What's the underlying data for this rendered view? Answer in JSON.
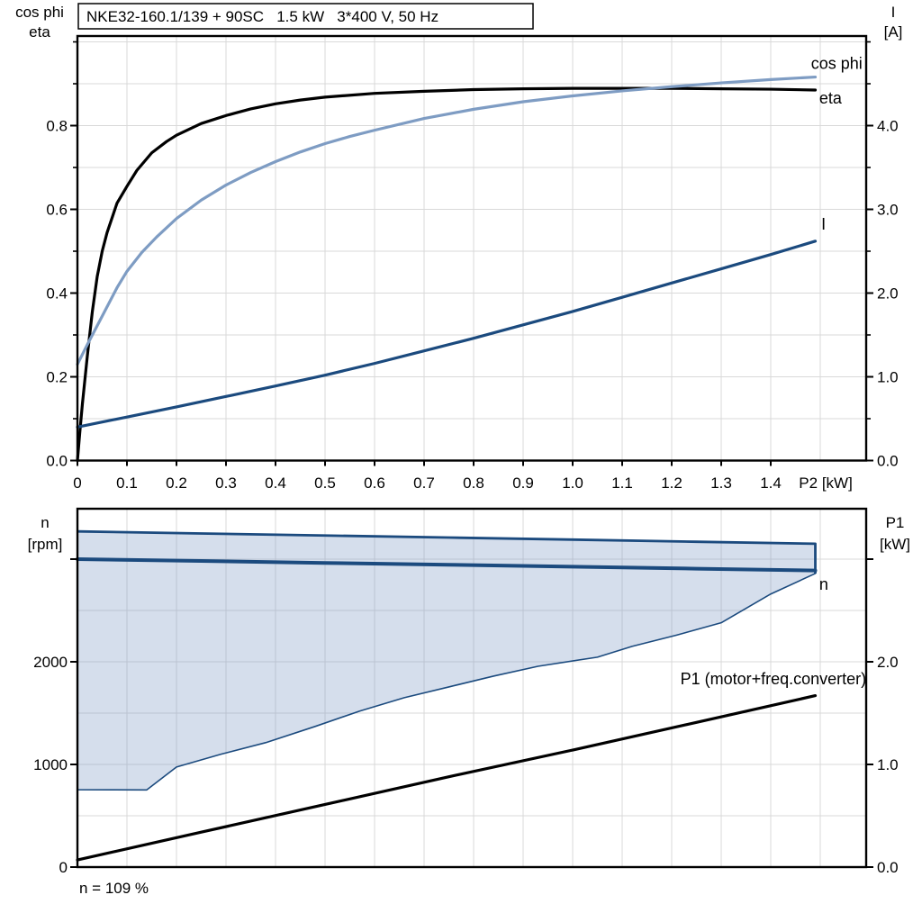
{
  "colors": {
    "black": "#000000",
    "dark_blue": "#1B4A7E",
    "light_blue": "#7E9CC3",
    "grid": "#D9D9D9",
    "area_fill": "rgba(126,156,196,0.33)",
    "frame": "#000000",
    "title_box_bg": "#FFFFFF"
  },
  "chart_data": [
    {
      "type": "line",
      "title": "NKE32-160.1/139 + 90SC   1.5 kW   3*400 V, 50 Hz",
      "x_axis": {
        "range": [
          0,
          1.5927
        ],
        "grid_step": 0.1,
        "ticks": [
          {
            "v": 0,
            "label": "0"
          },
          {
            "v": 0.1,
            "label": "0.1"
          },
          {
            "v": 0.2,
            "label": "0.2"
          },
          {
            "v": 0.3,
            "label": "0.3"
          },
          {
            "v": 0.4,
            "label": "0.4"
          },
          {
            "v": 0.5,
            "label": "0.5"
          },
          {
            "v": 0.6,
            "label": "0.6"
          },
          {
            "v": 0.7,
            "label": "0.7"
          },
          {
            "v": 0.8,
            "label": "0.8"
          },
          {
            "v": 0.9,
            "label": "0.9"
          },
          {
            "v": 1.0,
            "label": "1.0"
          },
          {
            "v": 1.1,
            "label": "1.1"
          },
          {
            "v": 1.2,
            "label": "1.2"
          },
          {
            "v": 1.3,
            "label": "1.3"
          },
          {
            "v": 1.4,
            "label": "1.4"
          }
        ],
        "unit_label": "P2 [kW]",
        "unit_label_x": 1.511
      },
      "left_axis": {
        "header": [
          "cos phi",
          "eta"
        ],
        "range": [
          0,
          1.014
        ],
        "grid_step": 0.1,
        "ticks": [
          {
            "v": 0.0,
            "label": "0.0"
          },
          {
            "v": 0.2,
            "label": "0.2"
          },
          {
            "v": 0.4,
            "label": "0.4"
          },
          {
            "v": 0.6,
            "label": "0.6"
          },
          {
            "v": 0.8,
            "label": "0.8"
          }
        ],
        "minor": [
          0.1,
          0.3,
          0.5,
          0.7,
          0.9,
          1.0
        ]
      },
      "right_axis": {
        "header": [
          "I",
          "[A]"
        ],
        "range": [
          0,
          5.0699
        ],
        "ticks": [
          {
            "v": 0.0,
            "label": "0.0"
          },
          {
            "v": 1.0,
            "label": "1.0"
          },
          {
            "v": 2.0,
            "label": "2.0"
          },
          {
            "v": 3.0,
            "label": "3.0"
          },
          {
            "v": 4.0,
            "label": "4.0"
          }
        ],
        "minor": [
          0.5,
          1.5,
          2.5,
          3.5,
          4.5,
          5.0
        ]
      },
      "series": [
        {
          "name": "eta",
          "axis": "left",
          "color": "#000000",
          "width": 3.2,
          "points": [
            [
              0,
              0
            ],
            [
              0.005,
              0.07
            ],
            [
              0.01,
              0.135
            ],
            [
              0.02,
              0.25
            ],
            [
              0.03,
              0.355
            ],
            [
              0.04,
              0.44
            ],
            [
              0.05,
              0.5
            ],
            [
              0.06,
              0.545
            ],
            [
              0.08,
              0.615
            ],
            [
              0.1,
              0.655
            ],
            [
              0.12,
              0.693
            ],
            [
              0.15,
              0.735
            ],
            [
              0.18,
              0.762
            ],
            [
              0.2,
              0.777
            ],
            [
              0.25,
              0.805
            ],
            [
              0.3,
              0.824
            ],
            [
              0.35,
              0.84
            ],
            [
              0.4,
              0.852
            ],
            [
              0.45,
              0.861
            ],
            [
              0.5,
              0.868
            ],
            [
              0.6,
              0.877
            ],
            [
              0.7,
              0.882
            ],
            [
              0.8,
              0.886
            ],
            [
              0.9,
              0.888
            ],
            [
              1.0,
              0.889
            ],
            [
              1.1,
              0.889
            ],
            [
              1.2,
              0.889
            ],
            [
              1.3,
              0.888
            ],
            [
              1.4,
              0.887
            ],
            [
              1.49,
              0.885
            ]
          ],
          "label": {
            "text": "eta",
            "x": 1.498,
            "y": 0.853,
            "anchor": "start",
            "color": "#000000"
          }
        },
        {
          "name": "cos phi",
          "axis": "left",
          "color": "#7E9CC3",
          "width": 3.2,
          "points": [
            [
              0,
              0.23
            ],
            [
              0.02,
              0.277
            ],
            [
              0.05,
              0.345
            ],
            [
              0.08,
              0.413
            ],
            [
              0.1,
              0.452
            ],
            [
              0.13,
              0.497
            ],
            [
              0.16,
              0.534
            ],
            [
              0.2,
              0.578
            ],
            [
              0.25,
              0.622
            ],
            [
              0.3,
              0.658
            ],
            [
              0.35,
              0.688
            ],
            [
              0.4,
              0.714
            ],
            [
              0.45,
              0.737
            ],
            [
              0.5,
              0.757
            ],
            [
              0.55,
              0.774
            ],
            [
              0.6,
              0.789
            ],
            [
              0.7,
              0.817
            ],
            [
              0.8,
              0.839
            ],
            [
              0.9,
              0.857
            ],
            [
              1.0,
              0.871
            ],
            [
              1.1,
              0.883
            ],
            [
              1.2,
              0.893
            ],
            [
              1.3,
              0.902
            ],
            [
              1.4,
              0.91
            ],
            [
              1.49,
              0.916
            ]
          ],
          "label": {
            "text": "cos phi",
            "x": 1.585,
            "y": 0.936,
            "anchor": "end",
            "color": "#7E9CC3"
          }
        },
        {
          "name": "I",
          "axis": "right",
          "color": "#1B4A7E",
          "width": 3.2,
          "points": [
            [
              0,
              0.4
            ],
            [
              0.1,
              0.52
            ],
            [
              0.2,
              0.64
            ],
            [
              0.3,
              0.765
            ],
            [
              0.4,
              0.89
            ],
            [
              0.5,
              1.02
            ],
            [
              0.6,
              1.16
            ],
            [
              0.7,
              1.31
            ],
            [
              0.8,
              1.46
            ],
            [
              0.9,
              1.62
            ],
            [
              1.0,
              1.78
            ],
            [
              1.1,
              1.95
            ],
            [
              1.2,
              2.12
            ],
            [
              1.3,
              2.29
            ],
            [
              1.4,
              2.46
            ],
            [
              1.49,
              2.62
            ]
          ],
          "label": {
            "text": "I",
            "x": 1.502,
            "y": 2.758,
            "anchor": "start",
            "color": "#1B4A7E"
          }
        }
      ]
    },
    {
      "type": "line",
      "title": "",
      "x_axis": {
        "range": [
          0,
          1.5927
        ],
        "grid_step": 0.1,
        "ticks": [],
        "unit_label": "",
        "unit_label_x": 0
      },
      "left_axis": {
        "header": [
          "n",
          "[rpm]"
        ],
        "range": [
          0,
          3491
        ],
        "grid_step": 500,
        "ticks": [
          {
            "v": 0,
            "label": "0"
          },
          {
            "v": 1000,
            "label": "1000"
          },
          {
            "v": 2000,
            "label": "2000"
          },
          {
            "v": 3000,
            "label": ""
          }
        ],
        "minor": []
      },
      "right_axis": {
        "header": [
          "P1",
          "[kW]"
        ],
        "range": [
          0,
          3.4912
        ],
        "ticks": [
          {
            "v": 0.0,
            "label": "0.0"
          },
          {
            "v": 1.0,
            "label": "1.0"
          },
          {
            "v": 2.0,
            "label": "2.0"
          },
          {
            "v": 3.0,
            "label": ""
          }
        ],
        "minor": []
      },
      "area": {
        "name": "speed-range",
        "axis": "left",
        "fill": "rgba(126,156,196,0.33)",
        "border_color": "#1B4A7E",
        "upper": [
          [
            0,
            3270
          ],
          [
            0.25,
            3250
          ],
          [
            0.5,
            3230
          ],
          [
            0.75,
            3210
          ],
          [
            1.0,
            3190
          ],
          [
            1.25,
            3169
          ],
          [
            1.49,
            3150
          ]
        ],
        "lower": [
          [
            0,
            754
          ],
          [
            0.14,
            752
          ],
          [
            0.2,
            975
          ],
          [
            0.29,
            1100
          ],
          [
            0.38,
            1212
          ],
          [
            0.48,
            1370
          ],
          [
            0.57,
            1520
          ],
          [
            0.66,
            1650
          ],
          [
            0.75,
            1755
          ],
          [
            0.84,
            1860
          ],
          [
            0.93,
            1956
          ],
          [
            1.05,
            2045
          ],
          [
            1.12,
            2150
          ],
          [
            1.21,
            2260
          ],
          [
            1.3,
            2380
          ],
          [
            1.4,
            2660
          ],
          [
            1.49,
            2860
          ]
        ]
      },
      "series": [
        {
          "name": "n",
          "axis": "left",
          "color": "#1B4A7E",
          "width": 4,
          "points": [
            [
              0,
              3000
            ],
            [
              0.25,
              2982
            ],
            [
              0.5,
              2963
            ],
            [
              0.75,
              2945
            ],
            [
              1.0,
              2926
            ],
            [
              1.25,
              2907
            ],
            [
              1.49,
              2889
            ]
          ],
          "label": {
            "text": "n",
            "x": 1.498,
            "y": 2702,
            "anchor": "start",
            "color": "#1B4A7E"
          }
        },
        {
          "name": "P1 (motor+freq.converter)",
          "axis": "right",
          "color": "#000000",
          "width": 3.2,
          "points": [
            [
              0,
              0.07
            ],
            [
              0.25,
              0.34
            ],
            [
              0.5,
              0.61
            ],
            [
              0.75,
              0.88
            ],
            [
              1.0,
              1.14
            ],
            [
              1.25,
              1.41
            ],
            [
              1.49,
              1.67
            ]
          ],
          "label": {
            "text": "P1 (motor+freq.converter)",
            "x": 1.593,
            "y": 1.78,
            "anchor": "end",
            "color": "#000000"
          }
        }
      ],
      "footnote": "n = 109 %"
    }
  ]
}
